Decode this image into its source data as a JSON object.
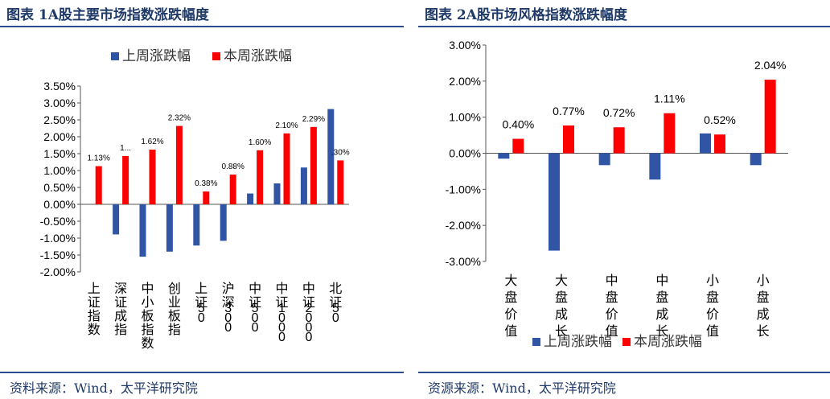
{
  "colors": {
    "last_week": "#2f55a4",
    "this_week": "#ff0000",
    "rule": "#2a4d8f",
    "title": "#1f3a68"
  },
  "panel1": {
    "title": "图表 1A股主要市场指数涨跌幅度",
    "source": "资料来源：Wind，太平洋研究院"
  },
  "panel2": {
    "title": "图表 2A股市场风格指数涨跌幅度",
    "source": "资源来源：Wind，太平洋研究院"
  },
  "chart_data": [
    {
      "type": "bar",
      "categories": [
        "上证指数",
        "深证成指",
        "中小板指数",
        "创业板指",
        "上证50",
        "沪深300",
        "中证500",
        "中证1000",
        "中证2000",
        "北证50"
      ],
      "series": [
        {
          "name": "上周涨跌幅",
          "values": [
            0.0,
            -0.89,
            -1.55,
            -1.4,
            -1.22,
            -1.08,
            0.32,
            0.62,
            1.09,
            2.82
          ]
        },
        {
          "name": "本周涨跌幅",
          "values": [
            1.13,
            1.43,
            1.62,
            2.32,
            0.38,
            0.88,
            1.6,
            2.1,
            2.29,
            1.3
          ]
        }
      ],
      "data_labels": [
        "1.13%",
        "1...",
        "1.62%",
        "2.32%",
        "0.38%",
        "0.88%",
        "1.60%",
        "2.10%",
        "2.29%",
        ".30%"
      ],
      "ylim": [
        -2.0,
        3.5
      ],
      "yticks": [
        "3.50%",
        "3.00%",
        "2.50%",
        "2.00%",
        "1.50%",
        "1.00%",
        "0.50%",
        "0.00%",
        "-0.50%",
        "-1.00%",
        "-1.50%",
        "-2.00%"
      ],
      "legend_position": "top",
      "grid": false
    },
    {
      "type": "bar",
      "categories": [
        "大盘价值",
        "大盘成长",
        "中盘价值",
        "中盘成长",
        "小盘价值",
        "小盘成长"
      ],
      "series": [
        {
          "name": "上周涨跌幅",
          "values": [
            -0.15,
            -2.7,
            -0.33,
            -0.73,
            0.55,
            -0.33
          ]
        },
        {
          "name": "本周涨跌幅",
          "values": [
            0.4,
            0.77,
            0.72,
            1.11,
            0.52,
            2.04
          ]
        }
      ],
      "data_labels": [
        "0.40%",
        "0.77%",
        "0.72%",
        "1.11%",
        "0.52%",
        "2.04%"
      ],
      "ylim": [
        -3.0,
        3.0
      ],
      "yticks": [
        "3.00%",
        "2.00%",
        "1.00%",
        "0.00%",
        "-1.00%",
        "-2.00%",
        "-3.00%"
      ],
      "legend_position": "bottom",
      "grid": false
    }
  ]
}
